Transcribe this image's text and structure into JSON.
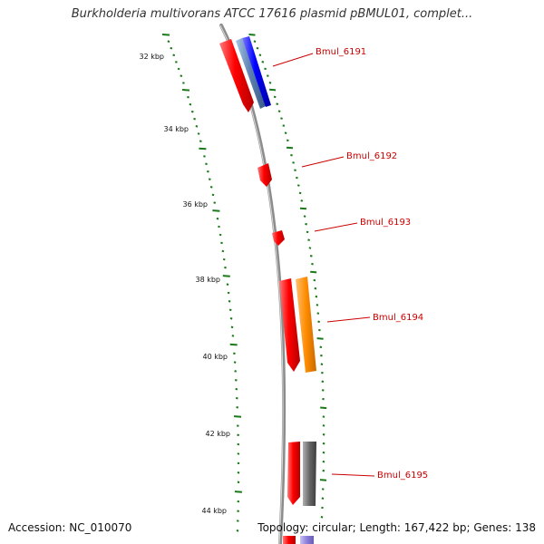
{
  "header": {
    "title": "Burkholderia multivorans ATCC 17616 plasmid pBMUL01, complet..."
  },
  "footer": {
    "accession": "Accession: NC_010070",
    "summary": "Topology: circular; Length: 167,422 bp; Genes: 138"
  },
  "scale": {
    "unit": "kbp",
    "ticks": [
      "32 kbp",
      "34 kbp",
      "36 kbp",
      "38 kbp",
      "40 kbp",
      "42 kbp",
      "44 kbp"
    ]
  },
  "genes": [
    {
      "name": "Bmul_6191",
      "color": "#ff0000"
    },
    {
      "name": "Bmul_6192",
      "color": "#ff0000"
    },
    {
      "name": "Bmul_6193",
      "color": "#ff0000"
    },
    {
      "name": "Bmul_6194",
      "color": "#ff0000"
    },
    {
      "name": "Bmul_6195",
      "color": "#ff0000"
    }
  ],
  "colors": {
    "backbone": "#8c8c8c",
    "tick": "#1a7a1a",
    "label": "#cc0000",
    "feature_blue": "#0000ff",
    "feature_steelblue": "#5a7fb0",
    "feature_orange": "#ff8c00",
    "feature_gray": "#666666",
    "feature_lavender": "#8c7fd9"
  }
}
